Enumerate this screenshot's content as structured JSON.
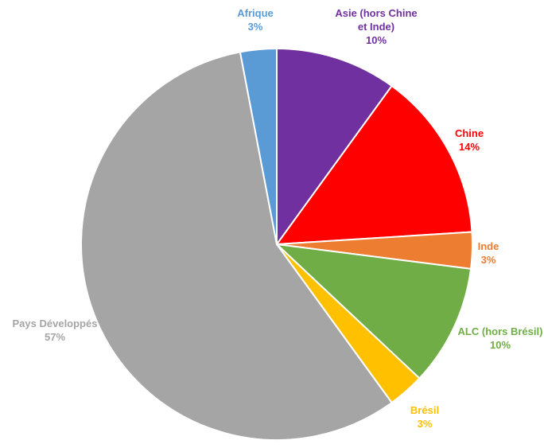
{
  "chart_data": {
    "type": "pie",
    "title": "",
    "start_angle_deg": 0,
    "direction": "clockwise",
    "legend": "none",
    "slices": [
      {
        "label_lines": [
          "Asie (hors Chine",
          "et Inde)"
        ],
        "value_label": "10%",
        "value": 10,
        "color": "#7030A0"
      },
      {
        "label_lines": [
          "Chine"
        ],
        "value_label": "14%",
        "value": 14,
        "color": "#FF0000"
      },
      {
        "label_lines": [
          "Inde"
        ],
        "value_label": "3%",
        "value": 3,
        "color": "#ED7D31"
      },
      {
        "label_lines": [
          "ALC (hors Brésil)"
        ],
        "value_label": "10%",
        "value": 10,
        "color": "#70AD47"
      },
      {
        "label_lines": [
          "Brésil"
        ],
        "value_label": "3%",
        "value": 3,
        "color": "#FFC000"
      },
      {
        "label_lines": [
          "Pays Développés"
        ],
        "value_label": "57%",
        "value": 57,
        "color": "#A5A5A5"
      },
      {
        "label_lines": [
          "Afrique"
        ],
        "value_label": "3%",
        "value": 3,
        "color": "#5B9BD5"
      }
    ]
  }
}
